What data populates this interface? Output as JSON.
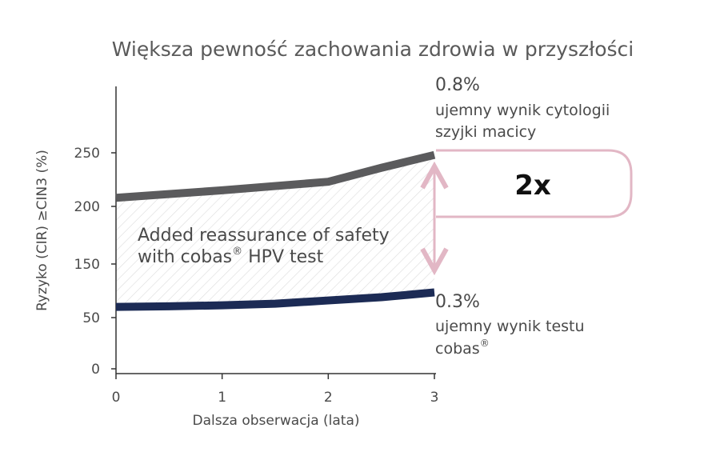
{
  "chart_data": {
    "type": "line",
    "title": "Większa pewność zachowania zdrowia w przyszłości",
    "xlabel": "Dalsza obserwacja (lata)",
    "ylabel": "Ryzyko (CIR) ≥CIN3 (%)",
    "x_ticks": [
      "0",
      "1",
      "2",
      "3"
    ],
    "y_ticks": [
      "0",
      "50",
      "150",
      "200",
      "250"
    ],
    "series": [
      {
        "name": "",
        "color": "#5b5b5d",
        "x": [
          0,
          1,
          2,
          2.5,
          3
        ],
        "y": [
          208,
          215,
          223,
          236,
          248
        ]
      },
      {
        "name": "",
        "color": "#1c2b55",
        "x": [
          0,
          0.5,
          1,
          1.5,
          2,
          2.5,
          3
        ],
        "y": [
          70,
          71,
          73,
          76,
          82,
          88,
          97
        ]
      }
    ],
    "annotations": {
      "upper_value": "0.8%",
      "upper_desc_line1": "ujemny wynik cytologii",
      "upper_desc_line2": "szyjki macicy",
      "lower_value": "0.3%",
      "lower_desc_line1": "ujemny wynik testu",
      "lower_desc_line2": "cobas",
      "lower_desc_sup": "®",
      "inside_line1": "Added reassurance of safety",
      "inside_line2_prefix": "with cobas",
      "inside_line2_sup": "®",
      "inside_line2_suffix": " HPV test",
      "factor": "2x"
    },
    "colors": {
      "bracket": "#e2b7c5",
      "hatch": "#d9d9d9",
      "axis": "#333333"
    }
  }
}
